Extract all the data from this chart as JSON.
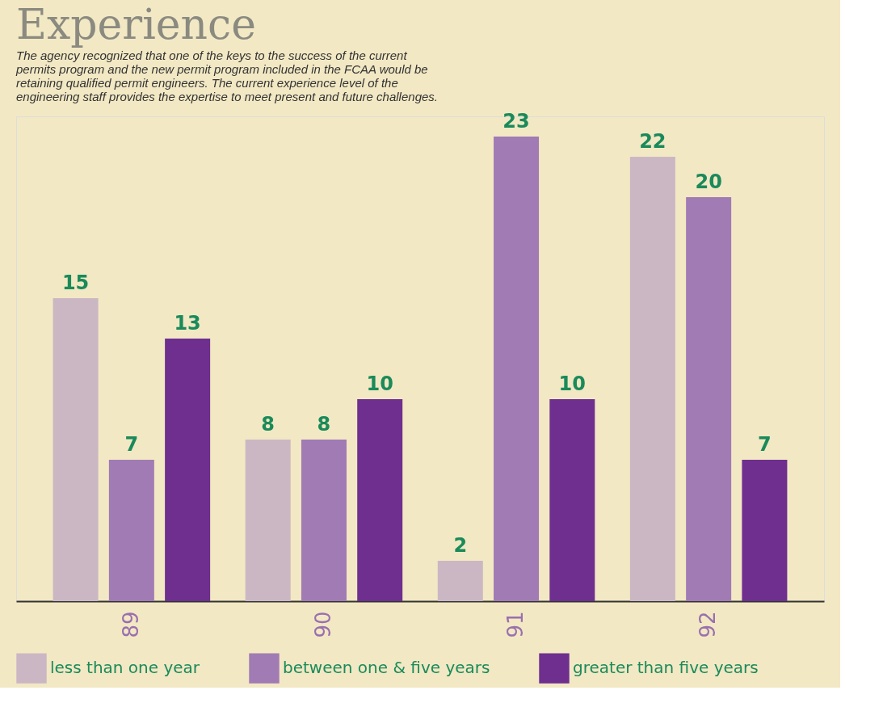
{
  "chart_data": {
    "type": "bar",
    "title": "Experience",
    "subtitle": "The agency recognized that one of the keys to the success of the current\npermits program and the new permit program included in the FCAA would be\nretaining qualified permit engineers. The current experience level of the\nengineering staff provides the expertise to meet present and future challenges.",
    "categories": [
      "89",
      "90",
      "91",
      "92"
    ],
    "series": [
      {
        "name": "less than one year",
        "color": "#cbb7c4",
        "values": [
          15,
          8,
          2,
          22
        ]
      },
      {
        "name": "between one & five years",
        "color": "#a07bb4",
        "values": [
          7,
          8,
          23,
          20
        ]
      },
      {
        "name": "greater than five years",
        "color": "#6e2f8e",
        "values": [
          13,
          10,
          10,
          7
        ]
      }
    ],
    "ylim": [
      0,
      24
    ],
    "data_labels": true,
    "tick_labels": "x",
    "grid": false,
    "legend": "bottom"
  }
}
